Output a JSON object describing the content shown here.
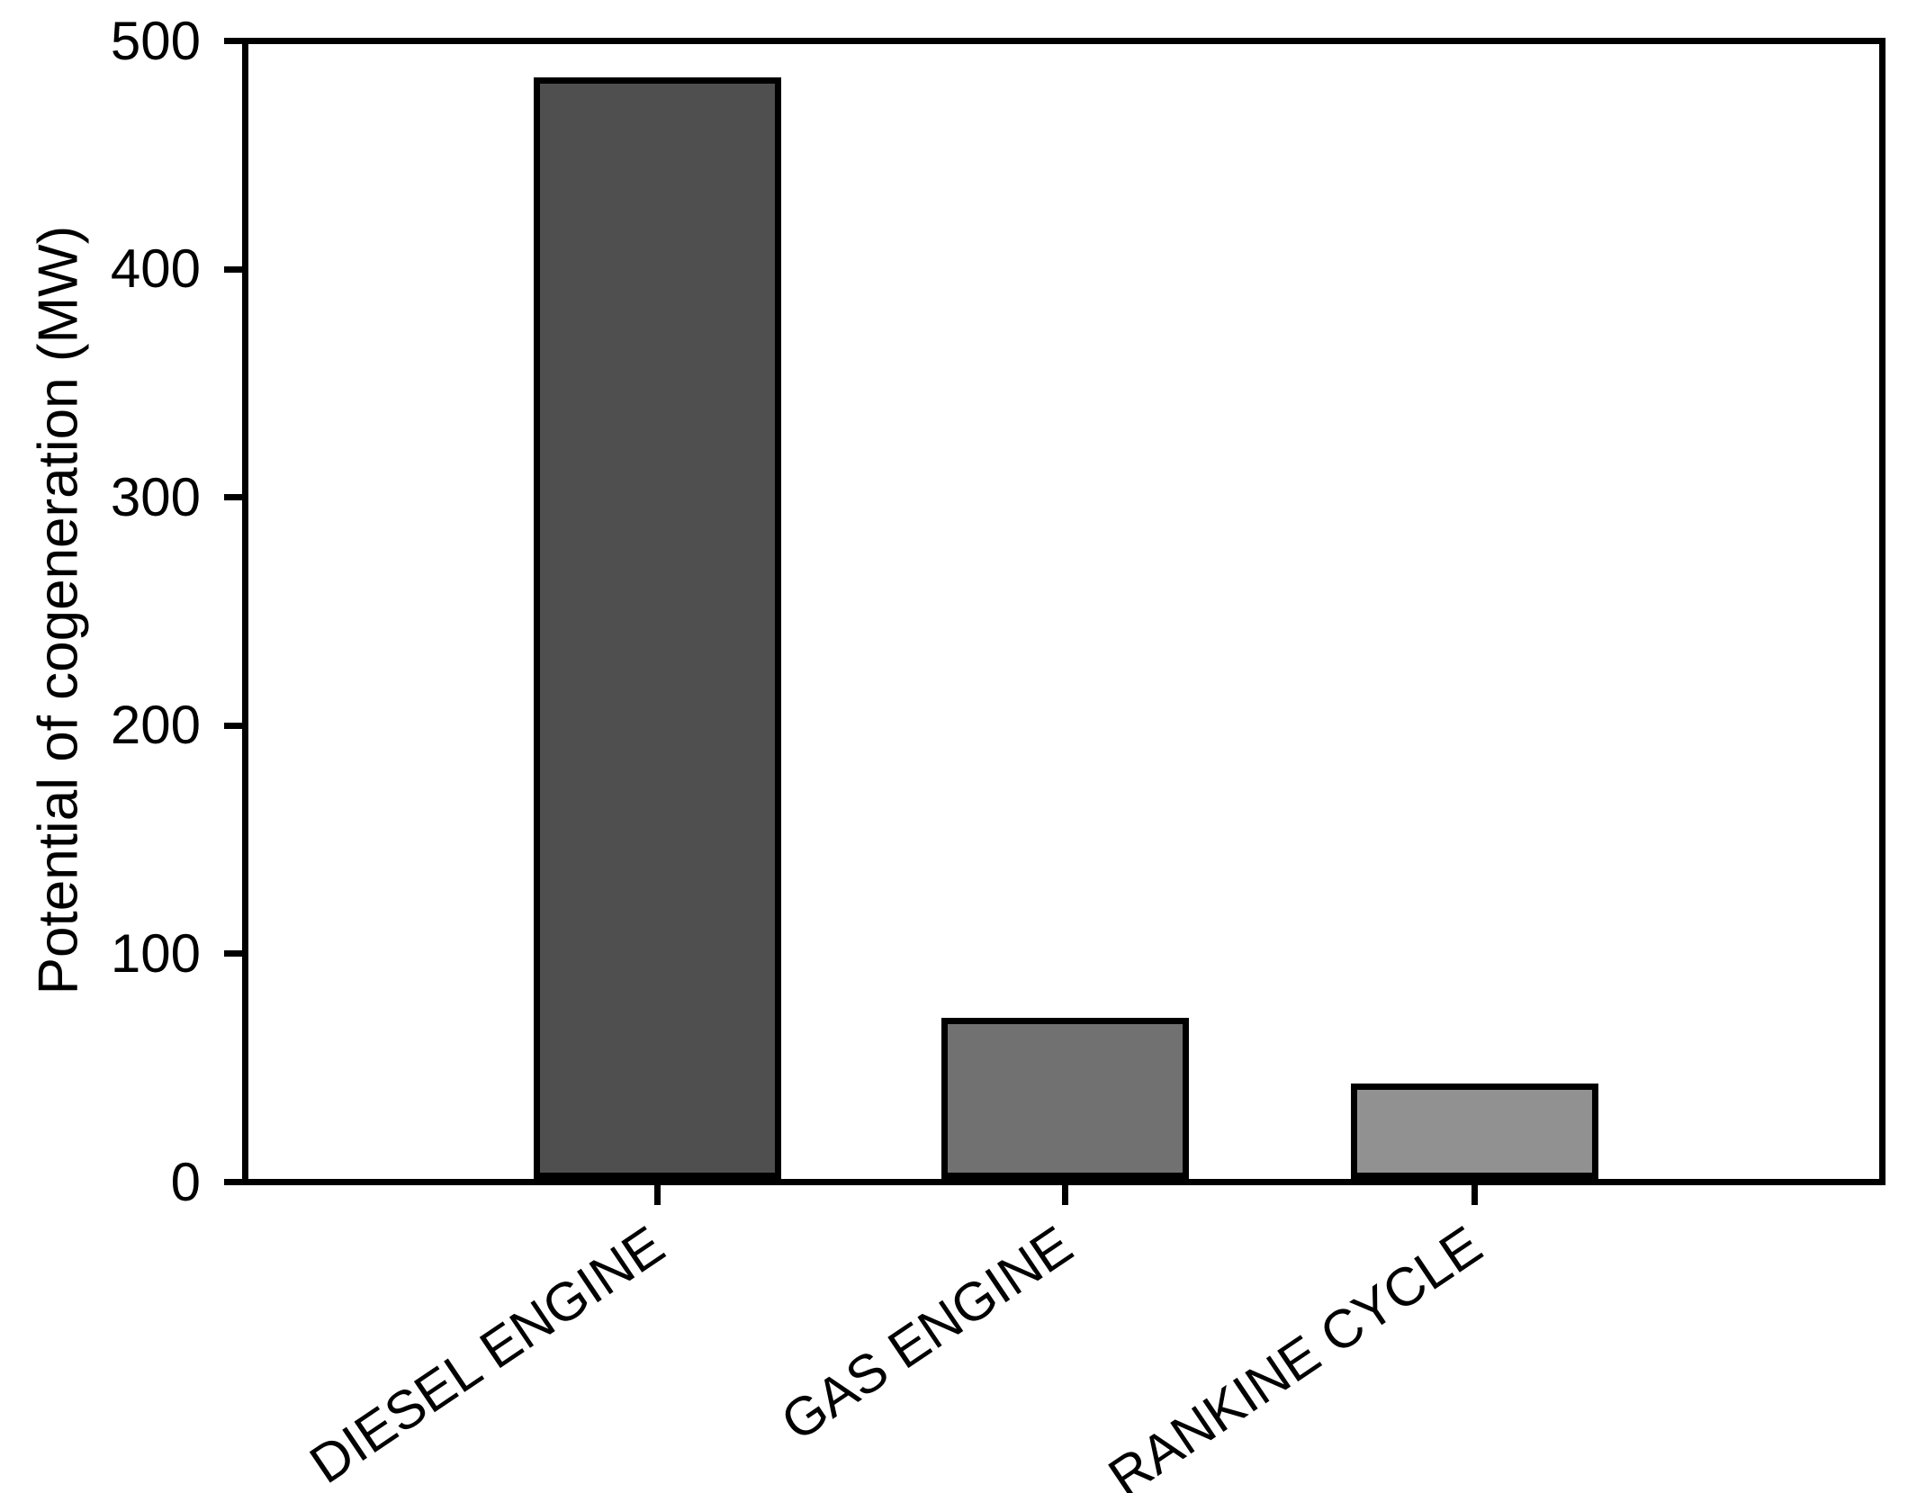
{
  "chart_data": {
    "type": "bar",
    "title": "",
    "categories": [
      "DIESEL ENGINE",
      "GAS ENGINE",
      "RANKINE CYCLE"
    ],
    "values": [
      484,
      72,
      43
    ],
    "xlabel": "",
    "ylabel": "Potential of cogeneration (MW)",
    "ylim": [
      0,
      500
    ],
    "yticks": [
      0,
      100,
      200,
      300,
      400,
      500
    ],
    "grid": false,
    "legend_position": "none",
    "bar_colors": [
      "#4F4F4F",
      "#717171",
      "#919191"
    ],
    "bar_border_color": "#000000",
    "axis_color": "#000000",
    "background_color": "#FFFFFF"
  }
}
